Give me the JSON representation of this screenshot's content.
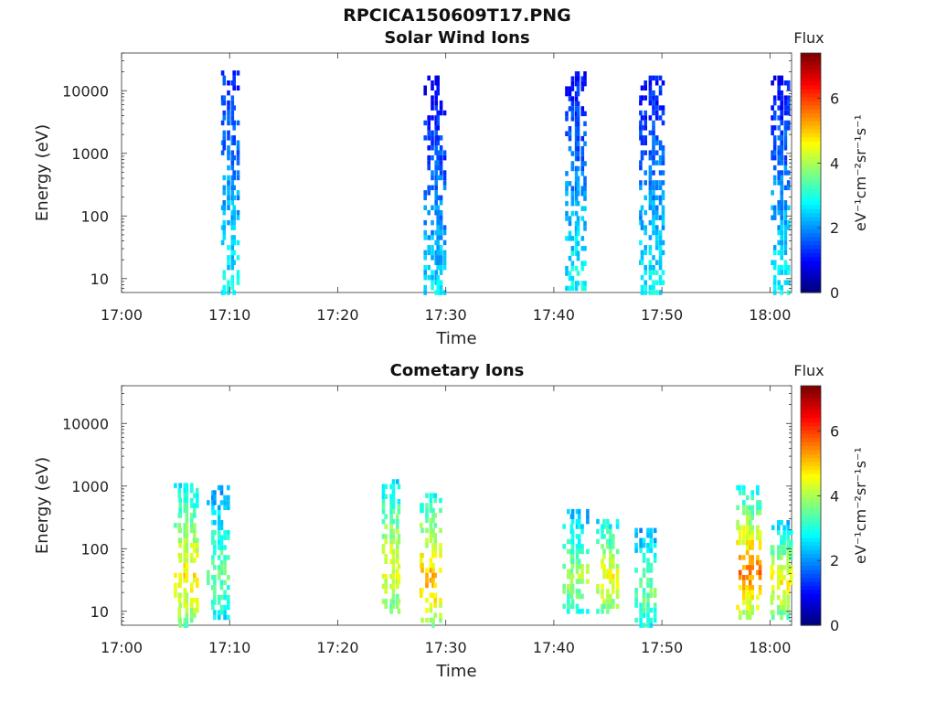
{
  "page": {
    "title": "RPCICA150609T17.PNG"
  },
  "chart_data": [
    {
      "type": "heatmap",
      "title": "Solar Wind Ions",
      "xlabel": "Time",
      "ylabel": "Energy (eV)",
      "x_ticks": [
        "17:00",
        "17:10",
        "17:20",
        "17:30",
        "17:40",
        "17:50",
        "18:00"
      ],
      "y_ticks": [
        "10",
        "100",
        "1000",
        "10000"
      ],
      "y_scale": "log",
      "ylim": [
        6,
        40000
      ],
      "xlim": [
        "17:00",
        "18:02"
      ],
      "colorbar": {
        "label": "Flux",
        "unit_label": "eV⁻¹cm⁻²sr⁻¹s⁻¹",
        "ticks": [
          "0",
          "2",
          "4",
          "6"
        ],
        "range": [
          0,
          7.4
        ],
        "colormap": "jet"
      },
      "bursts": [
        {
          "t": "17:10",
          "e_lo": 6,
          "e_hi": 20000,
          "flux_lo": 1.2,
          "flux_hi": 2.8
        },
        {
          "t": "17:29",
          "e_lo": 6,
          "e_hi": 17000,
          "flux_lo": 0.8,
          "flux_hi": 2.6
        },
        {
          "t": "17:42",
          "e_lo": 7,
          "e_hi": 20000,
          "flux_lo": 1.0,
          "flux_hi": 2.8
        },
        {
          "t": "17:49",
          "e_lo": 6,
          "e_hi": 16000,
          "flux_lo": 1.0,
          "flux_hi": 2.8
        },
        {
          "t": "18:01",
          "e_lo": 6,
          "e_hi": 16000,
          "flux_lo": 1.0,
          "flux_hi": 2.8
        }
      ]
    },
    {
      "type": "heatmap",
      "title": "Cometary Ions",
      "xlabel": "Time",
      "ylabel": "Energy (eV)",
      "x_ticks": [
        "17:00",
        "17:10",
        "17:20",
        "17:30",
        "17:40",
        "17:50",
        "18:00"
      ],
      "y_ticks": [
        "10",
        "100",
        "1000",
        "10000"
      ],
      "y_scale": "log",
      "ylim": [
        6,
        40000
      ],
      "xlim": [
        "17:00",
        "18:02"
      ],
      "colorbar": {
        "label": "Flux",
        "unit_label": "eV⁻¹cm⁻²sr⁻¹s⁻¹",
        "ticks": [
          "0",
          "2",
          "4",
          "6"
        ],
        "range": [
          0,
          7.4
        ],
        "colormap": "jet"
      },
      "bursts": [
        {
          "t": "17:06",
          "e_lo": 6,
          "e_hi": 1200,
          "flux_lo": 2.4,
          "flux_hi": 4.8
        },
        {
          "t": "17:09",
          "e_lo": 8,
          "e_hi": 1100,
          "flux_lo": 1.8,
          "flux_hi": 3.6
        },
        {
          "t": "17:25",
          "e_lo": 10,
          "e_hi": 1200,
          "flux_lo": 2.4,
          "flux_hi": 4.6
        },
        {
          "t": "17:28.5",
          "e_lo": 6,
          "e_hi": 800,
          "flux_lo": 2.6,
          "flux_hi": 5.2
        },
        {
          "t": "17:42",
          "e_lo": 10,
          "e_hi": 400,
          "flux_lo": 2.0,
          "flux_hi": 4.0
        },
        {
          "t": "17:45",
          "e_lo": 10,
          "e_hi": 300,
          "flux_lo": 2.4,
          "flux_hi": 4.6
        },
        {
          "t": "17:48.5",
          "e_lo": 6,
          "e_hi": 200,
          "flux_lo": 2.0,
          "flux_hi": 3.6
        },
        {
          "t": "17:58",
          "e_lo": 8,
          "e_hi": 1000,
          "flux_lo": 2.4,
          "flux_hi": 5.6
        },
        {
          "t": "18:01",
          "e_lo": 8,
          "e_hi": 300,
          "flux_lo": 2.0,
          "flux_hi": 4.8
        }
      ]
    }
  ]
}
